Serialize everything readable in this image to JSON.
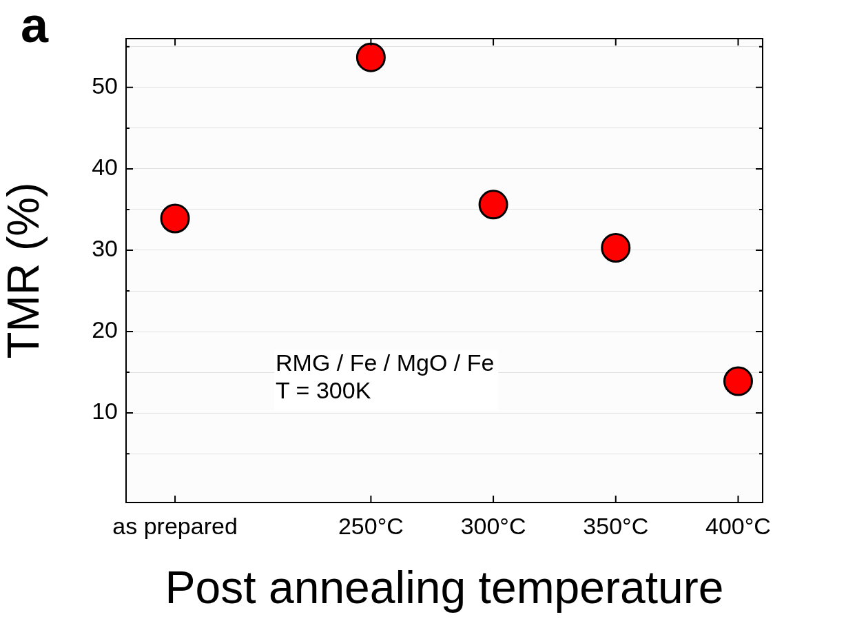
{
  "chart_data": {
    "type": "scatter",
    "xlabel": "Post annealing temperature",
    "ylabel": "TMR (%)",
    "x": [
      170,
      250,
      300,
      350,
      400
    ],
    "series": [
      {
        "color": "#ff0000",
        "values": [
          33.9,
          53.7,
          35.6,
          30.3,
          13.9
        ]
      }
    ],
    "xlim": [
      150,
      410
    ],
    "xticks": [
      {
        "value": 170,
        "label": "as prepared"
      },
      {
        "value": 250,
        "label": "250°C"
      },
      {
        "value": 300,
        "label": "300°C"
      },
      {
        "value": 350,
        "label": "350°C"
      },
      {
        "value": 400,
        "label": "400°C"
      }
    ],
    "ylim": [
      -1,
      56
    ],
    "yticks": [
      {
        "value": 5,
        "label": null
      },
      10,
      {
        "value": 15,
        "label": null
      },
      20,
      {
        "value": 25,
        "label": null
      },
      30,
      {
        "value": 35,
        "label": null
      },
      40,
      {
        "value": 45,
        "label": null
      },
      50,
      {
        "value": 55,
        "label": null
      }
    ],
    "grid": "y",
    "legend": false,
    "marker": "circle",
    "annotations": [
      "a",
      "RMG / Fe / MgO / Fe\nT = 300K"
    ]
  }
}
